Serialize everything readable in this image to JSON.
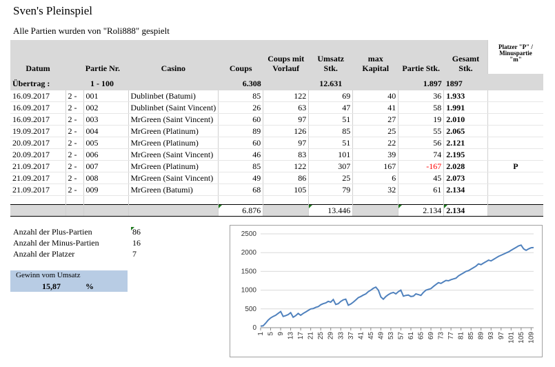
{
  "sheet": {
    "title": "Sven's Pleinspiel",
    "subtitle": "Alle Partien wurden von \"Roli888\" gespielt"
  },
  "table": {
    "headers": {
      "datum": "Datum",
      "partie_nr": "Partie Nr.",
      "casino": "Casino",
      "coups": "Coups",
      "coups_mit_vorlauf_1": "Coups mit",
      "coups_mit_vorlauf_2": "Vorlauf",
      "umsatz_1": "Umsatz",
      "umsatz_2": "Stk.",
      "max_kapital_1": "max",
      "max_kapital_2": "Kapital",
      "partie_stk": "Partie Stk.",
      "gesamt_1": "Gesamt",
      "gesamt_2": "Stk.",
      "platzer_1": "Platzer \"P\" /",
      "platzer_2": "Minuspartie",
      "platzer_3": "\"m\""
    },
    "ubertrag": {
      "label": "Übertrag :",
      "range": "1 - 100",
      "coups": "6.308",
      "umsatz": "12.631",
      "partie_stk": "1.897",
      "gesamt": "1897"
    },
    "rows": [
      {
        "datum": "16.09.2017",
        "serie": "2 -",
        "nr": "001",
        "casino": "Dublinbet (Batumi)",
        "coups": "85",
        "vorlauf": "122",
        "umsatz": "69",
        "kapital": "40",
        "partie": "36",
        "gesamt": "1.933",
        "platzer": "",
        "neg": false
      },
      {
        "datum": "16.09.2017",
        "serie": "2 -",
        "nr": "002",
        "casino": "Dublinbet (Saint Vincent)",
        "coups": "26",
        "vorlauf": "63",
        "umsatz": "47",
        "kapital": "41",
        "partie": "58",
        "gesamt": "1.991",
        "platzer": "",
        "neg": false
      },
      {
        "datum": "16.09.2017",
        "serie": "2 -",
        "nr": "003",
        "casino": "MrGreen (Saint Vincent)",
        "coups": "60",
        "vorlauf": "97",
        "umsatz": "51",
        "kapital": "27",
        "partie": "19",
        "gesamt": "2.010",
        "platzer": "",
        "neg": false
      },
      {
        "datum": "19.09.2017",
        "serie": "2 -",
        "nr": "004",
        "casino": "MrGreen (Platinum)",
        "coups": "89",
        "vorlauf": "126",
        "umsatz": "85",
        "kapital": "25",
        "partie": "55",
        "gesamt": "2.065",
        "platzer": "",
        "neg": false
      },
      {
        "datum": "20.09.2017",
        "serie": "2 -",
        "nr": "005",
        "casino": "MrGreen (Platinum)",
        "coups": "60",
        "vorlauf": "97",
        "umsatz": "51",
        "kapital": "22",
        "partie": "56",
        "gesamt": "2.121",
        "platzer": "",
        "neg": false
      },
      {
        "datum": "20.09.2017",
        "serie": "2 -",
        "nr": "006",
        "casino": "MrGreen (Saint Vincent)",
        "coups": "46",
        "vorlauf": "83",
        "umsatz": "101",
        "kapital": "39",
        "partie": "74",
        "gesamt": "2.195",
        "platzer": "",
        "neg": false
      },
      {
        "datum": "21.09.2017",
        "serie": "2 -",
        "nr": "007",
        "casino": "MrGreen (Platinum)",
        "coups": "85",
        "vorlauf": "122",
        "umsatz": "307",
        "kapital": "167",
        "partie": "-167",
        "gesamt": "2.028",
        "platzer": "P",
        "neg": true
      },
      {
        "datum": "21.09.2017",
        "serie": "2 -",
        "nr": "008",
        "casino": "MrGreen (Saint Vincent)",
        "coups": "49",
        "vorlauf": "86",
        "umsatz": "25",
        "kapital": "6",
        "partie": "45",
        "gesamt": "2.073",
        "platzer": "",
        "neg": false
      },
      {
        "datum": "21.09.2017",
        "serie": "2 -",
        "nr": "009",
        "casino": "MrGreen (Batumi)",
        "coups": "68",
        "vorlauf": "105",
        "umsatz": "79",
        "kapital": "32",
        "partie": "61",
        "gesamt": "2.134",
        "platzer": "",
        "neg": false
      }
    ],
    "totals": {
      "coups": "6.876",
      "umsatz": "13.446",
      "partie_stk": "2.134",
      "gesamt": "2.134"
    }
  },
  "stats": {
    "plus_label": "Anzahl der Plus-Partien",
    "plus_value": "86",
    "minus_label": "Anzahl der Minus-Partien",
    "minus_value": "16",
    "platzer_label": "Anzahl der Platzer",
    "platzer_value": "7"
  },
  "gewinn": {
    "label": "Gewinn vom Umsatz",
    "value": "15,87",
    "unit": "%"
  },
  "colors": {
    "header_bg": "#d9d9d9",
    "gewinn_bg": "#b8cce4",
    "line": "#4f81bd",
    "negative": "#ff0000"
  },
  "chart_data": {
    "type": "line",
    "y_ticks": [
      0,
      500,
      1000,
      1500,
      2000,
      2500
    ],
    "x_tick_labels": [
      "1",
      "5",
      "9",
      "13",
      "17",
      "21",
      "25",
      "29",
      "33",
      "37",
      "41",
      "45",
      "49",
      "53",
      "57",
      "61",
      "65",
      "69",
      "73",
      "77",
      "81",
      "85",
      "89",
      "93",
      "97",
      "101",
      "105",
      "109"
    ],
    "x_range": [
      1,
      110
    ],
    "ylim": [
      0,
      2500
    ],
    "grid": true,
    "series": [
      {
        "values": [
          40,
          50,
          120,
          200,
          260,
          300,
          330,
          380,
          430,
          300,
          320,
          350,
          400,
          280,
          320,
          380,
          330,
          380,
          420,
          460,
          500,
          510,
          540,
          560,
          610,
          640,
          660,
          700,
          680,
          750,
          620,
          640,
          700,
          740,
          760,
          600,
          630,
          680,
          740,
          800,
          830,
          870,
          900,
          960,
          1000,
          1050,
          1080,
          1000,
          820,
          760,
          830,
          880,
          920,
          940,
          900,
          960,
          1000,
          840,
          860,
          870,
          830,
          840,
          900,
          880,
          860,
          940,
          1000,
          1020,
          1040,
          1100,
          1150,
          1200,
          1180,
          1220,
          1260,
          1250,
          1280,
          1300,
          1320,
          1380,
          1420,
          1460,
          1500,
          1520,
          1560,
          1600,
          1640,
          1700,
          1680,
          1720,
          1760,
          1800,
          1780,
          1820,
          1860,
          1900,
          1930,
          1960,
          1990,
          2020,
          2060,
          2100,
          2140,
          2180,
          2200,
          2100,
          2060,
          2100,
          2130,
          2134
        ]
      }
    ]
  }
}
